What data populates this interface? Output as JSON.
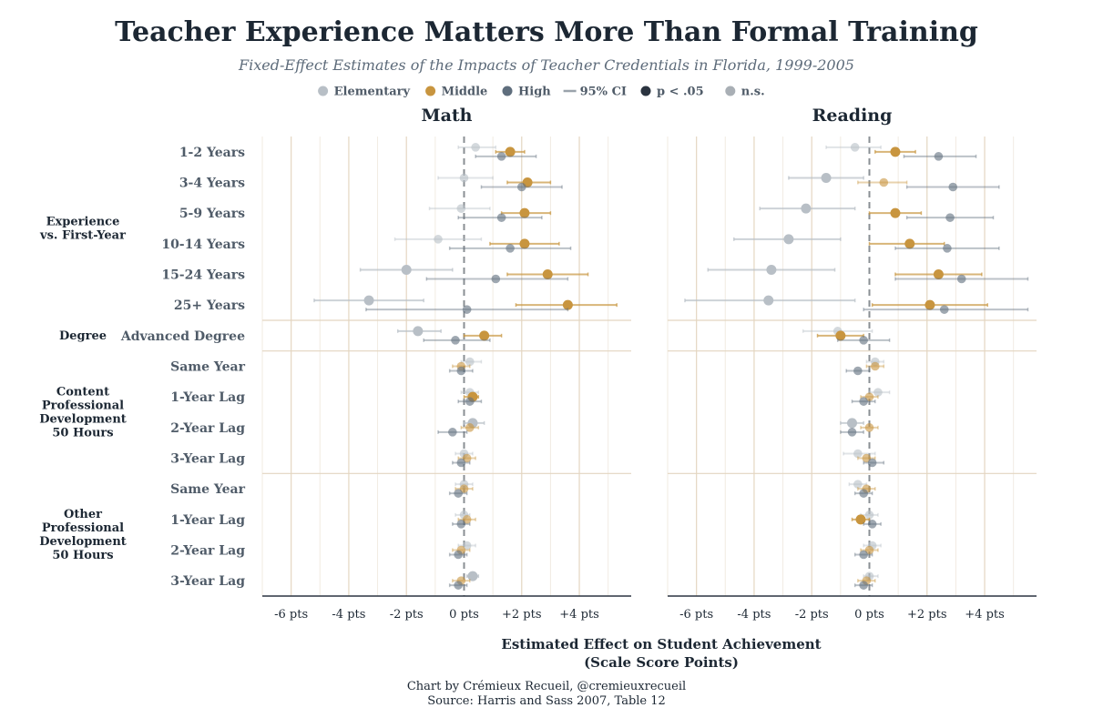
{
  "title": "Teacher Experience Matters More Than Formal Training",
  "subtitle": "Fixed-Effect Estimates of the Impacts of Teacher Credentials in Florida, 1999-2005",
  "legend": [
    {
      "label": "Elementary",
      "symbol": "dot",
      "color": "#b8bfc6"
    },
    {
      "label": "Middle",
      "symbol": "dot",
      "color": "#c8953f"
    },
    {
      "label": "High",
      "symbol": "dot",
      "color": "#5f6e7d"
    },
    {
      "label": "95% CI",
      "symbol": "line",
      "color": "#9aa3ab"
    },
    {
      "label": "p < .05",
      "symbol": "dot",
      "color": "#2b3440"
    },
    {
      "label": "n.s.",
      "symbol": "dot",
      "color": "#a9afb5"
    }
  ],
  "colors": {
    "Elementary": "#b8bfc6",
    "Middle": "#c8953f",
    "High": "#5f6e7d",
    "grid_major": "#e6d9c6",
    "separator": "#e3d5c0",
    "zero_line": "#8a8f94",
    "axis": "#2b3440"
  },
  "groups": [
    {
      "label_lines": [
        "Experience",
        "vs. First-Year"
      ],
      "rows": [
        0,
        5
      ]
    },
    {
      "label_lines": [
        "Degree"
      ],
      "rows": [
        6,
        6
      ]
    },
    {
      "label_lines": [
        "Content",
        "Professional",
        "Development",
        "50 Hours"
      ],
      "rows": [
        7,
        10
      ]
    },
    {
      "label_lines": [
        "Other",
        "Professional",
        "Development",
        "50 Hours"
      ],
      "rows": [
        11,
        14
      ]
    }
  ],
  "row_labels": [
    "1-2 Years",
    "3-4 Years",
    "5-9 Years",
    "10-14 Years",
    "15-24 Years",
    "25+ Years",
    "Advanced Degree",
    "Same Year",
    "1-Year Lag",
    "2-Year Lag",
    "3-Year Lag",
    "Same Year",
    "1-Year Lag",
    "2-Year Lag",
    "3-Year Lag"
  ],
  "x_axis": {
    "ticks": [
      -6,
      -4,
      -2,
      0,
      2,
      4
    ],
    "tick_labels": [
      "-6 pts",
      "-4 pts",
      "-2 pts",
      "0 pts",
      "+2 pts",
      "+4 pts"
    ],
    "xlim": [
      -7,
      5.8
    ],
    "label_lines": [
      "Estimated Effect on Student Achievement",
      "(Scale Score Points)"
    ]
  },
  "caption_lines": [
    "Chart by Crémieux Recueil, @cremieuxrecueil",
    "Source: Harris and Sass 2007, Table 12"
  ],
  "chart_data": {
    "type": "scatter",
    "series_names": [
      "Elementary",
      "Middle",
      "High"
    ],
    "panels": [
      {
        "title": "Math",
        "points": [
          [
            {
              "v": 0.4,
              "lo": -0.2,
              "hi": 1.1,
              "sig": false
            },
            {
              "v": 1.6,
              "lo": 1.1,
              "hi": 2.1,
              "sig": true
            },
            {
              "v": 1.3,
              "lo": 0.4,
              "hi": 2.5,
              "sig": false
            }
          ],
          [
            {
              "v": 0.0,
              "lo": -0.9,
              "hi": 1.0,
              "sig": false
            },
            {
              "v": 2.2,
              "lo": 1.5,
              "hi": 3.0,
              "sig": true
            },
            {
              "v": 2.0,
              "lo": 0.6,
              "hi": 3.4,
              "sig": false
            }
          ],
          [
            {
              "v": -0.1,
              "lo": -1.2,
              "hi": 0.9,
              "sig": false
            },
            {
              "v": 2.1,
              "lo": 1.3,
              "hi": 3.0,
              "sig": true
            },
            {
              "v": 1.3,
              "lo": -0.2,
              "hi": 2.7,
              "sig": false
            }
          ],
          [
            {
              "v": -0.9,
              "lo": -2.4,
              "hi": 0.6,
              "sig": false
            },
            {
              "v": 2.1,
              "lo": 0.9,
              "hi": 3.3,
              "sig": true
            },
            {
              "v": 1.6,
              "lo": -0.5,
              "hi": 3.7,
              "sig": false
            }
          ],
          [
            {
              "v": -2.0,
              "lo": -3.6,
              "hi": -0.4,
              "sig": true
            },
            {
              "v": 2.9,
              "lo": 1.5,
              "hi": 4.3,
              "sig": true
            },
            {
              "v": 1.1,
              "lo": -1.3,
              "hi": 3.6,
              "sig": false
            }
          ],
          [
            {
              "v": -3.3,
              "lo": -5.2,
              "hi": -1.4,
              "sig": true
            },
            {
              "v": 3.6,
              "lo": 1.8,
              "hi": 5.3,
              "sig": true
            },
            {
              "v": 0.1,
              "lo": -3.4,
              "hi": 3.6,
              "sig": false
            }
          ],
          [
            {
              "v": -1.6,
              "lo": -2.3,
              "hi": -0.8,
              "sig": true
            },
            {
              "v": 0.7,
              "lo": 0.0,
              "hi": 1.3,
              "sig": true
            },
            {
              "v": -0.3,
              "lo": -1.4,
              "hi": 0.9,
              "sig": false
            }
          ],
          [
            {
              "v": 0.2,
              "lo": -0.1,
              "hi": 0.6,
              "sig": false
            },
            {
              "v": -0.1,
              "lo": -0.4,
              "hi": 0.2,
              "sig": false
            },
            {
              "v": -0.1,
              "lo": -0.5,
              "hi": 0.3,
              "sig": false
            }
          ],
          [
            {
              "v": 0.2,
              "lo": -0.1,
              "hi": 0.5,
              "sig": false
            },
            {
              "v": 0.3,
              "lo": 0.0,
              "hi": 0.5,
              "sig": true
            },
            {
              "v": 0.2,
              "lo": -0.2,
              "hi": 0.6,
              "sig": false
            }
          ],
          [
            {
              "v": 0.3,
              "lo": 0.0,
              "hi": 0.7,
              "sig": true
            },
            {
              "v": 0.2,
              "lo": -0.1,
              "hi": 0.5,
              "sig": false
            },
            {
              "v": -0.4,
              "lo": -0.9,
              "hi": 0.1,
              "sig": false
            }
          ],
          [
            {
              "v": 0.0,
              "lo": -0.3,
              "hi": 0.3,
              "sig": false
            },
            {
              "v": 0.1,
              "lo": -0.2,
              "hi": 0.4,
              "sig": false
            },
            {
              "v": -0.1,
              "lo": -0.4,
              "hi": 0.2,
              "sig": false
            }
          ],
          [
            {
              "v": 0.0,
              "lo": -0.3,
              "hi": 0.3,
              "sig": false
            },
            {
              "v": 0.0,
              "lo": -0.3,
              "hi": 0.3,
              "sig": false
            },
            {
              "v": -0.2,
              "lo": -0.5,
              "hi": 0.1,
              "sig": false
            }
          ],
          [
            {
              "v": 0.0,
              "lo": -0.3,
              "hi": 0.2,
              "sig": false
            },
            {
              "v": 0.1,
              "lo": -0.2,
              "hi": 0.4,
              "sig": false
            },
            {
              "v": -0.1,
              "lo": -0.4,
              "hi": 0.2,
              "sig": false
            }
          ],
          [
            {
              "v": 0.1,
              "lo": -0.2,
              "hi": 0.4,
              "sig": false
            },
            {
              "v": -0.1,
              "lo": -0.4,
              "hi": 0.2,
              "sig": false
            },
            {
              "v": -0.2,
              "lo": -0.5,
              "hi": 0.1,
              "sig": false
            }
          ],
          [
            {
              "v": 0.3,
              "lo": 0.1,
              "hi": 0.5,
              "sig": true
            },
            {
              "v": -0.1,
              "lo": -0.4,
              "hi": 0.2,
              "sig": false
            },
            {
              "v": -0.2,
              "lo": -0.5,
              "hi": 0.1,
              "sig": false
            }
          ]
        ]
      },
      {
        "title": "Reading",
        "points": [
          [
            {
              "v": -0.5,
              "lo": -1.5,
              "hi": 0.4,
              "sig": false
            },
            {
              "v": 0.9,
              "lo": 0.2,
              "hi": 1.6,
              "sig": true
            },
            {
              "v": 2.4,
              "lo": 1.2,
              "hi": 3.7,
              "sig": false
            }
          ],
          [
            {
              "v": -1.5,
              "lo": -2.8,
              "hi": -0.2,
              "sig": true
            },
            {
              "v": 0.5,
              "lo": -0.4,
              "hi": 1.3,
              "sig": false
            },
            {
              "v": 2.9,
              "lo": 1.3,
              "hi": 4.5,
              "sig": false
            }
          ],
          [
            {
              "v": -2.2,
              "lo": -3.8,
              "hi": -0.5,
              "sig": true
            },
            {
              "v": 0.9,
              "lo": 0.0,
              "hi": 1.8,
              "sig": true
            },
            {
              "v": 2.8,
              "lo": 1.3,
              "hi": 4.3,
              "sig": false
            }
          ],
          [
            {
              "v": -2.8,
              "lo": -4.7,
              "hi": -1.0,
              "sig": true
            },
            {
              "v": 1.4,
              "lo": 0.0,
              "hi": 2.6,
              "sig": true
            },
            {
              "v": 2.7,
              "lo": 0.9,
              "hi": 4.5,
              "sig": false
            }
          ],
          [
            {
              "v": -3.4,
              "lo": -5.6,
              "hi": -1.2,
              "sig": true
            },
            {
              "v": 2.4,
              "lo": 0.9,
              "hi": 3.9,
              "sig": true
            },
            {
              "v": 3.2,
              "lo": 0.9,
              "hi": 5.5,
              "sig": false
            }
          ],
          [
            {
              "v": -3.5,
              "lo": -6.4,
              "hi": -0.5,
              "sig": true
            },
            {
              "v": 2.1,
              "lo": 0.1,
              "hi": 4.1,
              "sig": true
            },
            {
              "v": 2.6,
              "lo": -0.2,
              "hi": 5.5,
              "sig": false
            }
          ],
          [
            {
              "v": -1.1,
              "lo": -2.3,
              "hi": 0.1,
              "sig": false
            },
            {
              "v": -1.0,
              "lo": -1.8,
              "hi": -0.2,
              "sig": true
            },
            {
              "v": -0.2,
              "lo": -1.1,
              "hi": 0.7,
              "sig": false
            }
          ],
          [
            {
              "v": 0.2,
              "lo": -0.1,
              "hi": 0.5,
              "sig": false
            },
            {
              "v": 0.2,
              "lo": -0.1,
              "hi": 0.5,
              "sig": false
            },
            {
              "v": -0.4,
              "lo": -0.8,
              "hi": 0.0,
              "sig": false
            }
          ],
          [
            {
              "v": 0.3,
              "lo": 0.0,
              "hi": 0.7,
              "sig": false
            },
            {
              "v": 0.0,
              "lo": -0.3,
              "hi": 0.3,
              "sig": false
            },
            {
              "v": -0.2,
              "lo": -0.6,
              "hi": 0.2,
              "sig": false
            }
          ],
          [
            {
              "v": -0.6,
              "lo": -1.0,
              "hi": -0.2,
              "sig": true
            },
            {
              "v": 0.0,
              "lo": -0.3,
              "hi": 0.3,
              "sig": false
            },
            {
              "v": -0.6,
              "lo": -1.0,
              "hi": -0.2,
              "sig": false
            }
          ],
          [
            {
              "v": -0.4,
              "lo": -0.9,
              "hi": 0.2,
              "sig": false
            },
            {
              "v": -0.1,
              "lo": -0.4,
              "hi": 0.2,
              "sig": false
            },
            {
              "v": 0.1,
              "lo": -0.2,
              "hi": 0.5,
              "sig": false
            }
          ],
          [
            {
              "v": -0.4,
              "lo": -0.7,
              "hi": -0.1,
              "sig": false
            },
            {
              "v": -0.1,
              "lo": -0.4,
              "hi": 0.2,
              "sig": false
            },
            {
              "v": -0.2,
              "lo": -0.5,
              "hi": 0.1,
              "sig": false
            }
          ],
          [
            {
              "v": 0.0,
              "lo": -0.3,
              "hi": 0.3,
              "sig": false
            },
            {
              "v": -0.3,
              "lo": -0.6,
              "hi": 0.0,
              "sig": true
            },
            {
              "v": 0.1,
              "lo": -0.2,
              "hi": 0.4,
              "sig": false
            }
          ],
          [
            {
              "v": 0.1,
              "lo": -0.2,
              "hi": 0.4,
              "sig": false
            },
            {
              "v": 0.0,
              "lo": -0.3,
              "hi": 0.3,
              "sig": false
            },
            {
              "v": -0.2,
              "lo": -0.5,
              "hi": 0.1,
              "sig": false
            }
          ],
          [
            {
              "v": 0.0,
              "lo": -0.2,
              "hi": 0.3,
              "sig": false
            },
            {
              "v": -0.1,
              "lo": -0.4,
              "hi": 0.2,
              "sig": false
            },
            {
              "v": -0.2,
              "lo": -0.5,
              "hi": 0.1,
              "sig": false
            }
          ]
        ]
      }
    ]
  }
}
